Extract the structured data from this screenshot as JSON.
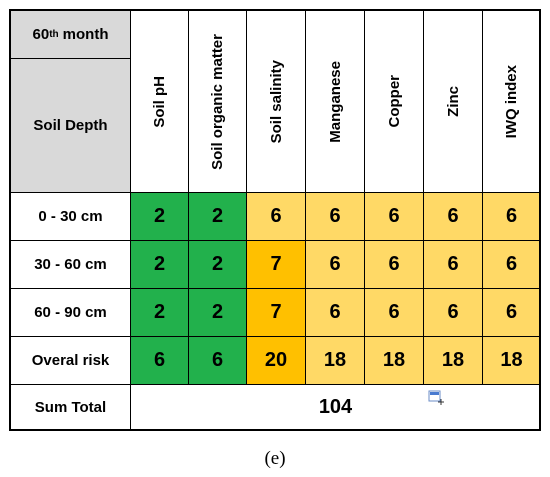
{
  "header": {
    "period": {
      "number": "60",
      "sup": "th",
      "word": "month"
    },
    "row_label": "Soil Depth",
    "columns": [
      "Soil pH",
      "Soil organic matter",
      "Soil salinity",
      "Manganese",
      "Copper",
      "Zinc",
      "IWQ index"
    ]
  },
  "rows": [
    {
      "label": "0 - 30 cm",
      "values": [
        2,
        2,
        6,
        6,
        6,
        6,
        6
      ],
      "colors": [
        "#22b14c",
        "#22b14c",
        "#ffd966",
        "#ffd966",
        "#ffd966",
        "#ffd966",
        "#ffd966"
      ]
    },
    {
      "label": "30 - 60 cm",
      "values": [
        2,
        2,
        7,
        6,
        6,
        6,
        6
      ],
      "colors": [
        "#22b14c",
        "#22b14c",
        "#ffc000",
        "#ffd966",
        "#ffd966",
        "#ffd966",
        "#ffd966"
      ]
    },
    {
      "label": "60 - 90 cm",
      "values": [
        2,
        2,
        7,
        6,
        6,
        6,
        6
      ],
      "colors": [
        "#22b14c",
        "#22b14c",
        "#ffc000",
        "#ffd966",
        "#ffd966",
        "#ffd966",
        "#ffd966"
      ]
    },
    {
      "label": "Overal risk",
      "values": [
        6,
        6,
        20,
        18,
        18,
        18,
        18
      ],
      "colors": [
        "#22b14c",
        "#22b14c",
        "#ffc000",
        "#ffd966",
        "#ffd966",
        "#ffd966",
        "#ffd966"
      ]
    }
  ],
  "sum_total": {
    "label": "Sum Total",
    "value": 104
  },
  "caption": "(e)"
}
